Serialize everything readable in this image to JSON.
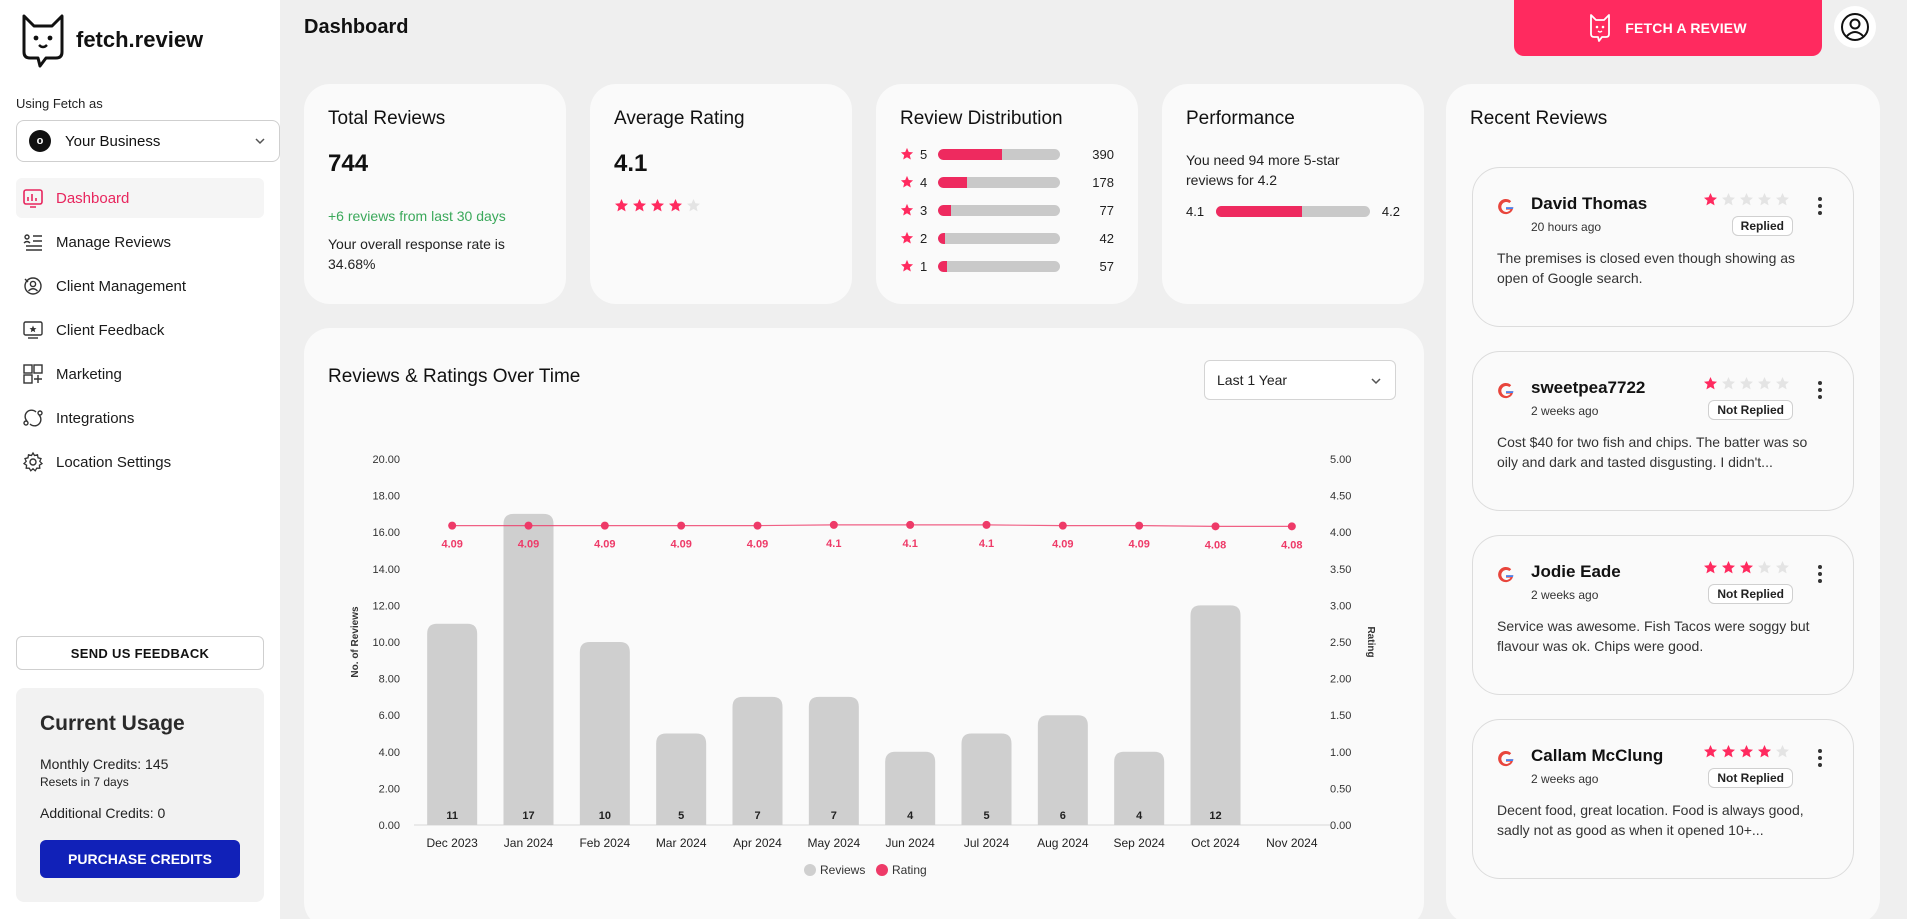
{
  "brand": {
    "name": "fetch.review"
  },
  "sidebar": {
    "using_as_label": "Using Fetch as",
    "business": {
      "avatar_letter": "o",
      "name": "Your Business"
    },
    "items": [
      {
        "label": "Dashboard",
        "icon": "dashboard-icon",
        "active": true
      },
      {
        "label": "Manage Reviews",
        "icon": "list-icon"
      },
      {
        "label": "Client Management",
        "icon": "client-management-icon"
      },
      {
        "label": "Client Feedback",
        "icon": "feedback-icon"
      },
      {
        "label": "Marketing",
        "icon": "marketing-icon"
      },
      {
        "label": "Integrations",
        "icon": "integrations-icon"
      },
      {
        "label": "Location Settings",
        "icon": "gear-icon"
      }
    ],
    "feedback_button": "SEND US FEEDBACK",
    "usage": {
      "title": "Current Usage",
      "monthly": "Monthly Credits: 145",
      "reset": "Resets in 7 days",
      "additional": "Additional Credits: 0",
      "purchase_button": "PURCHASE CREDITS"
    }
  },
  "header": {
    "title": "Dashboard",
    "fetch_button": "FETCH A REVIEW"
  },
  "colors": {
    "accent": "#ff2a5f",
    "primary_button": "#1121b8",
    "positive": "#3aa85a",
    "bar_gray": "#c9c9c9"
  },
  "stats": {
    "total": {
      "title": "Total Reviews",
      "value": "744",
      "delta": "+6 reviews from last 30 days",
      "response": "Your overall response rate is 34.68%"
    },
    "average": {
      "title": "Average Rating",
      "value": "4.1",
      "stars": 4
    },
    "distribution": {
      "title": "Review Distribution",
      "rows": [
        {
          "star": "5",
          "count": "390",
          "fraction": 0.524
        },
        {
          "star": "4",
          "count": "178",
          "fraction": 0.239
        },
        {
          "star": "3",
          "count": "77",
          "fraction": 0.103
        },
        {
          "star": "2",
          "count": "42",
          "fraction": 0.056
        },
        {
          "star": "1",
          "count": "57",
          "fraction": 0.077
        }
      ]
    },
    "performance": {
      "title": "Performance",
      "text": "You need 94 more 5-star reviews for 4.2",
      "from": "4.1",
      "to": "4.2",
      "fraction": 0.56
    }
  },
  "over_time": {
    "title": "Reviews & Ratings Over Time",
    "range": "Last 1 Year"
  },
  "chart_data": {
    "type": "bar",
    "categories": [
      "Dec 2023",
      "Jan 2024",
      "Feb 2024",
      "Mar 2024",
      "Apr 2024",
      "May 2024",
      "Jun 2024",
      "Jul 2024",
      "Aug 2024",
      "Sep 2024",
      "Oct 2024",
      "Nov 2024"
    ],
    "series": [
      {
        "name": "Reviews",
        "type": "bar",
        "axis": "left",
        "values": [
          11,
          17,
          10,
          5,
          7,
          7,
          4,
          5,
          6,
          4,
          12,
          0
        ],
        "labels": [
          "11",
          "17",
          "10",
          "5",
          "7",
          "7",
          "4",
          "5",
          "6",
          "4",
          "12",
          ""
        ]
      },
      {
        "name": "Rating",
        "type": "line",
        "axis": "right",
        "values": [
          4.09,
          4.09,
          4.09,
          4.09,
          4.09,
          4.1,
          4.1,
          4.1,
          4.09,
          4.09,
          4.08,
          4.08
        ],
        "labels": [
          "4.09",
          "4.09",
          "4.09",
          "4.09",
          "4.09",
          "4.1",
          "4.1",
          "4.1",
          "4.09",
          "4.09",
          "4.08",
          "4.08"
        ]
      }
    ],
    "ylabel": "No. of Reviews",
    "y2label": "Rating",
    "ylim": [
      0,
      20
    ],
    "y2lim": [
      0,
      5
    ],
    "yticks": [
      "0.00",
      "2.00",
      "4.00",
      "6.00",
      "8.00",
      "10.00",
      "12.00",
      "14.00",
      "16.00",
      "18.00",
      "20.00"
    ],
    "y2ticks": [
      "0.00",
      "0.50",
      "1.00",
      "1.50",
      "2.00",
      "2.50",
      "3.00",
      "3.50",
      "4.00",
      "4.50",
      "5.00"
    ],
    "legend": [
      "Reviews",
      "Rating"
    ],
    "legend_position": "bottom",
    "colors": {
      "bar": "#cfcfcf",
      "line": "#ee3a68"
    }
  },
  "recent": {
    "title": "Recent Reviews",
    "reviews": [
      {
        "name": "David Thomas",
        "time": "20 hours ago",
        "stars": 1,
        "status": "Replied",
        "text": "The premises is closed even though showing as open of Google search."
      },
      {
        "name": "sweetpea7722",
        "time": "2 weeks ago",
        "stars": 1,
        "status": "Not Replied",
        "text": "Cost $40 for two fish and chips. The batter was so oily and dark and tasted disgusting. I didn't..."
      },
      {
        "name": "Jodie Eade",
        "time": "2 weeks ago",
        "stars": 3,
        "status": "Not Replied",
        "text": "Service was awesome. Fish Tacos were soggy but flavour was ok. Chips were good."
      },
      {
        "name": "Callam McClung",
        "time": "2 weeks ago",
        "stars": 4,
        "status": "Not Replied",
        "text": "Decent food, great location. Food is always good, sadly not as good as when it opened 10+..."
      }
    ]
  }
}
